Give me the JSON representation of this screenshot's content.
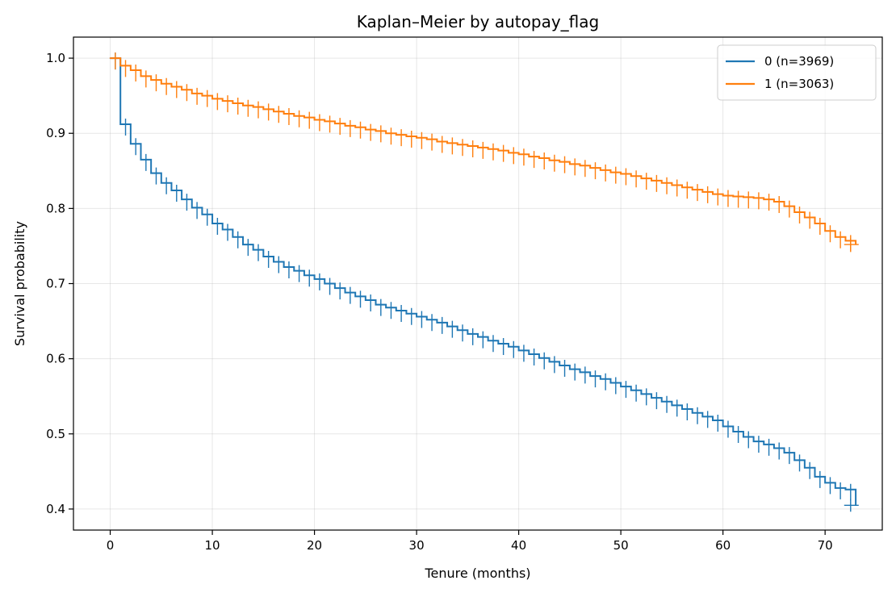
{
  "chart_data": {
    "type": "line",
    "title": "Kaplan–Meier by autopay_flag",
    "xlabel": "Tenure (months)",
    "ylabel": "Survival probability",
    "xlim": [
      -3.6,
      75.6
    ],
    "ylim": [
      0.372,
      1.028
    ],
    "xticks": [
      0,
      10,
      20,
      30,
      40,
      50,
      60,
      70
    ],
    "yticks": [
      0.4,
      0.5,
      0.6,
      0.7,
      0.8,
      0.9,
      1.0
    ],
    "xtick_labels": [
      "0",
      "10",
      "20",
      "30",
      "40",
      "50",
      "60",
      "70"
    ],
    "ytick_labels": [
      "0.4",
      "0.5",
      "0.6",
      "0.7",
      "0.8",
      "0.9",
      "1.0"
    ],
    "grid": true,
    "legend_position": "top-right",
    "step": "post",
    "censor_markers": true,
    "series": [
      {
        "name": "0 (n=3969)",
        "color": "#1f77b4",
        "x": [
          0,
          1,
          2,
          3,
          4,
          5,
          6,
          7,
          8,
          9,
          10,
          11,
          12,
          13,
          14,
          15,
          16,
          17,
          18,
          19,
          20,
          21,
          22,
          23,
          24,
          25,
          26,
          27,
          28,
          29,
          30,
          31,
          32,
          33,
          34,
          35,
          36,
          37,
          38,
          39,
          40,
          41,
          42,
          43,
          44,
          45,
          46,
          47,
          48,
          49,
          50,
          51,
          52,
          53,
          54,
          55,
          56,
          57,
          58,
          59,
          60,
          61,
          62,
          63,
          64,
          65,
          66,
          67,
          68,
          69,
          70,
          71,
          72,
          73
        ],
        "y": [
          1.0,
          0.912,
          0.886,
          0.865,
          0.847,
          0.834,
          0.824,
          0.812,
          0.801,
          0.792,
          0.78,
          0.772,
          0.762,
          0.752,
          0.745,
          0.736,
          0.729,
          0.722,
          0.717,
          0.711,
          0.706,
          0.7,
          0.694,
          0.688,
          0.683,
          0.678,
          0.672,
          0.668,
          0.664,
          0.66,
          0.656,
          0.652,
          0.648,
          0.643,
          0.638,
          0.633,
          0.629,
          0.624,
          0.62,
          0.616,
          0.611,
          0.606,
          0.601,
          0.596,
          0.591,
          0.586,
          0.582,
          0.577,
          0.573,
          0.568,
          0.563,
          0.558,
          0.553,
          0.548,
          0.543,
          0.538,
          0.533,
          0.528,
          0.523,
          0.518,
          0.51,
          0.503,
          0.496,
          0.49,
          0.486,
          0.481,
          0.475,
          0.465,
          0.455,
          0.443,
          0.435,
          0.428,
          0.426,
          0.405
        ]
      },
      {
        "name": "1 (n=3063)",
        "color": "#ff7f0e",
        "x": [
          0,
          1,
          2,
          3,
          4,
          5,
          6,
          7,
          8,
          9,
          10,
          11,
          12,
          13,
          14,
          15,
          16,
          17,
          18,
          19,
          20,
          21,
          22,
          23,
          24,
          25,
          26,
          27,
          28,
          29,
          30,
          31,
          32,
          33,
          34,
          35,
          36,
          37,
          38,
          39,
          40,
          41,
          42,
          43,
          44,
          45,
          46,
          47,
          48,
          49,
          50,
          51,
          52,
          53,
          54,
          55,
          56,
          57,
          58,
          59,
          60,
          61,
          62,
          63,
          64,
          65,
          66,
          67,
          68,
          69,
          70,
          71,
          72,
          73
        ],
        "y": [
          1.0,
          0.99,
          0.984,
          0.976,
          0.971,
          0.966,
          0.962,
          0.958,
          0.953,
          0.95,
          0.946,
          0.943,
          0.94,
          0.937,
          0.935,
          0.932,
          0.929,
          0.926,
          0.923,
          0.921,
          0.918,
          0.916,
          0.913,
          0.91,
          0.908,
          0.905,
          0.903,
          0.9,
          0.898,
          0.896,
          0.894,
          0.892,
          0.889,
          0.887,
          0.885,
          0.883,
          0.881,
          0.879,
          0.877,
          0.874,
          0.872,
          0.869,
          0.867,
          0.864,
          0.862,
          0.859,
          0.857,
          0.854,
          0.851,
          0.848,
          0.846,
          0.843,
          0.84,
          0.837,
          0.834,
          0.831,
          0.828,
          0.825,
          0.822,
          0.819,
          0.817,
          0.816,
          0.815,
          0.814,
          0.812,
          0.809,
          0.803,
          0.795,
          0.788,
          0.78,
          0.77,
          0.762,
          0.757,
          0.752
        ]
      }
    ]
  }
}
